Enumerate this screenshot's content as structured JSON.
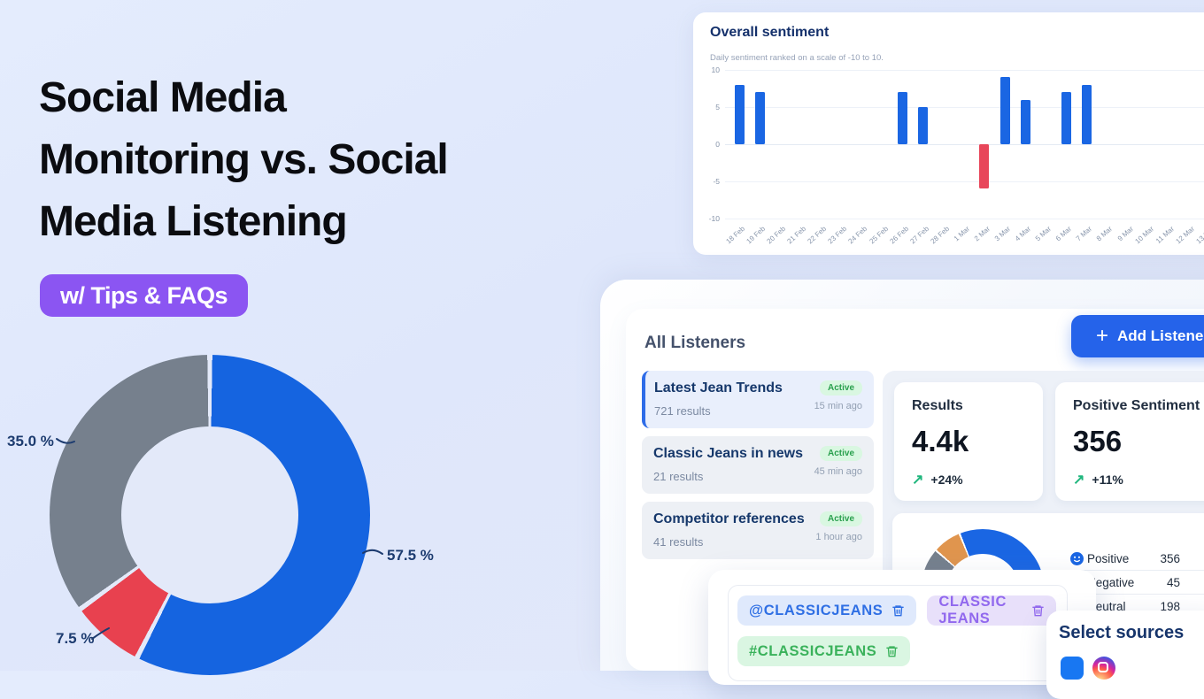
{
  "hero": {
    "title_lines": [
      "Social Media",
      "Monitoring vs. Social",
      "Media Listening"
    ],
    "badge_label": "w/ Tips & FAQs",
    "badge_bg": "#8b55f2"
  },
  "chart_data": [
    {
      "id": "share_donut",
      "type": "pie",
      "donut": true,
      "labels": [
        "57.5 %",
        "7.5 %",
        "35.0 %"
      ],
      "values": [
        57.5,
        7.5,
        35.0
      ],
      "colors": [
        "#1564e0",
        "#e8414f",
        "#76808d"
      ],
      "start_deg": 0,
      "gap_color": "#e3e9f9",
      "legend_position": "outside-labels"
    },
    {
      "id": "overall_sentiment",
      "type": "bar",
      "title": "Overall sentiment",
      "subtitle": "Daily sentiment ranked on a scale of -10 to 10.",
      "categories": [
        "18 Feb",
        "19 Feb",
        "20 Feb",
        "21 Feb",
        "22 Feb",
        "23 Feb",
        "24 Feb",
        "25 Feb",
        "26 Feb",
        "27 Feb",
        "28 Feb",
        "1 Mar",
        "2 Mar",
        "3 Mar",
        "4 Mar",
        "5 Mar",
        "6 Mar",
        "7 Mar",
        "8 Mar",
        "9 Mar",
        "10 Mar",
        "11 Mar",
        "12 Mar",
        "13 Mar"
      ],
      "values": [
        8,
        7,
        0,
        0,
        0,
        0,
        0,
        0,
        7,
        5,
        0,
        0,
        -6,
        9,
        6,
        0,
        7,
        8,
        0,
        0,
        0,
        0,
        0,
        0
      ],
      "ylim": [
        -10,
        10
      ],
      "yticks": [
        10,
        5,
        0,
        -5,
        -10
      ],
      "bar_color": "#1a66e3",
      "negative_color": "#e8465a",
      "grid": true
    },
    {
      "id": "sentiment_breakdown",
      "type": "pie",
      "donut": true,
      "start_deg": 192,
      "reverse_segments": true,
      "gap_color": "#ffffff",
      "items": [
        {
          "label": "Positive",
          "value": 356,
          "color": "#1a66e3",
          "icon": "smiley-positive-icon"
        },
        {
          "label": "Negative",
          "value": 45,
          "color": "#e0954e",
          "icon": "smiley-negative-icon"
        },
        {
          "label": "Neutral",
          "value": 198,
          "color": "#76808d",
          "icon": "smiley-neutral-icon"
        }
      ]
    }
  ],
  "dashboard": {
    "heading": "All Listeners",
    "add_button_label": "Add Listener",
    "listeners": [
      {
        "name": "Latest Jean Trends",
        "results": "721 results",
        "status": "Active",
        "time": "15 min ago",
        "selected": true
      },
      {
        "name": "Classic Jeans in news",
        "results": "21 results",
        "status": "Active",
        "time": "45 min ago",
        "selected": false
      },
      {
        "name": "Competitor references",
        "results": "41 results",
        "status": "Active",
        "time": "1 hour ago",
        "selected": false
      }
    ],
    "stats": [
      {
        "label": "Results",
        "value": "4.4k",
        "delta": "+24%"
      },
      {
        "label": "Positive Sentiment",
        "value": "356",
        "delta": "+11%"
      }
    ],
    "tags": [
      {
        "text": "@CLASSICJEANS",
        "fg": "#2f6fe4",
        "bg": "#dfe9fc",
        "row": 1
      },
      {
        "text": "CLASSIC JEANS",
        "fg": "#9168ee",
        "bg": "#e8e0fa",
        "row": 1
      },
      {
        "text": "#CLASSICJEANS",
        "fg": "#3ab25b",
        "bg": "#daf6e2",
        "row": 2
      }
    ],
    "select_sources_title": "Select sources"
  }
}
